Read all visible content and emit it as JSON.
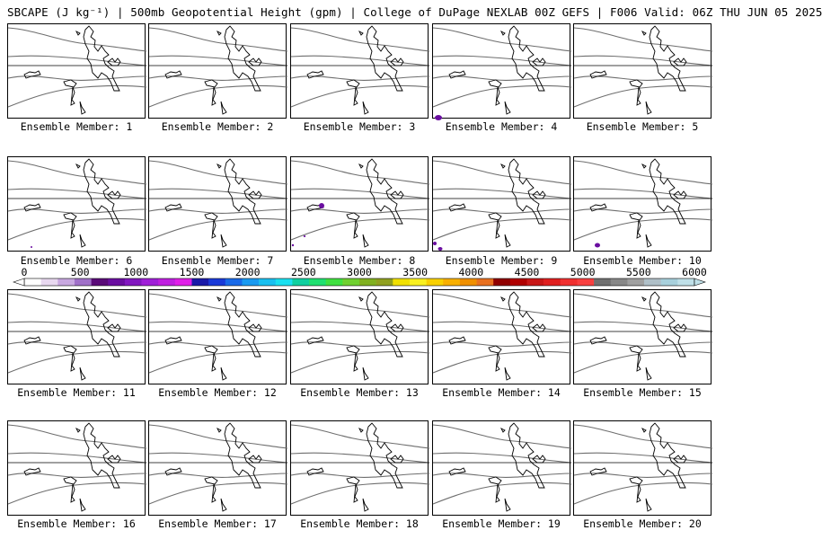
{
  "title": "SBCAPE (J kg⁻¹) | 500mb Geopotential Height (gpm) | College of DuPage NEXLAB 00Z GEFS | F006 Valid: 06Z THU JUN 05 2025",
  "members": [
    {
      "label": "Ensemble Member: 1"
    },
    {
      "label": "Ensemble Member: 2"
    },
    {
      "label": "Ensemble Member: 3"
    },
    {
      "label": "Ensemble Member: 4"
    },
    {
      "label": "Ensemble Member: 5"
    },
    {
      "label": "Ensemble Member: 6"
    },
    {
      "label": "Ensemble Member: 7"
    },
    {
      "label": "Ensemble Member: 8"
    },
    {
      "label": "Ensemble Member: 9"
    },
    {
      "label": "Ensemble Member: 10"
    },
    {
      "label": "Ensemble Member: 11"
    },
    {
      "label": "Ensemble Member: 12"
    },
    {
      "label": "Ensemble Member: 13"
    },
    {
      "label": "Ensemble Member: 14"
    },
    {
      "label": "Ensemble Member: 15"
    },
    {
      "label": "Ensemble Member: 16"
    },
    {
      "label": "Ensemble Member: 17"
    },
    {
      "label": "Ensemble Member: 18"
    },
    {
      "label": "Ensemble Member: 19"
    },
    {
      "label": "Ensemble Member: 20"
    }
  ],
  "colorbar": {
    "ticks": [
      "0",
      "500",
      "1000",
      "1500",
      "2000",
      "2500",
      "3000",
      "3500",
      "4000",
      "4500",
      "5000",
      "5500",
      "6000"
    ],
    "colors": [
      "#ffffff",
      "#e8d8f0",
      "#c8a8e0",
      "#a070c8",
      "#5a0a78",
      "#6a0ea0",
      "#8218c0",
      "#a020d8",
      "#c020e0",
      "#e020e8",
      "#1a1aa8",
      "#1a3ad8",
      "#1a6ae8",
      "#1a9af0",
      "#1ac0f0",
      "#1ae0f0",
      "#10d0a0",
      "#20e070",
      "#40e040",
      "#70d030",
      "#80b020",
      "#90a020",
      "#f0e000",
      "#f8f020",
      "#f8d000",
      "#f8b000",
      "#f09000",
      "#e87020",
      "#900000",
      "#b00000",
      "#c81818",
      "#e02020",
      "#f03030",
      "#f84040",
      "#707070",
      "#888888",
      "#a0a0a0",
      "#b0c0c8",
      "#a8d0dc",
      "#c0e0e8"
    ]
  }
}
